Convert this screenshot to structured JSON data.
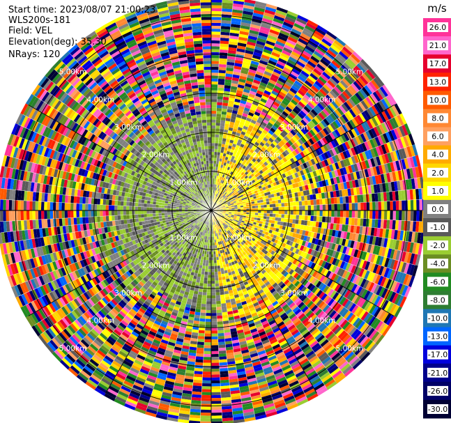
{
  "header": {
    "start_time": "Start time: 2023/08/07 21:00:23",
    "instrument": "WLS200s-181",
    "field": "Field: VEL",
    "elevation": "Elevation(deg): 35.30",
    "nrays": "NRays: 120"
  },
  "chart_data": {
    "type": "heatmap",
    "projection": "polar-ppi",
    "field": "VEL",
    "nrays": 120,
    "ring_labels": [
      "1.00km",
      "2.00km",
      "3.00km",
      "4.00km",
      "5.00km"
    ],
    "max_range_km": 5.4,
    "colorbar": {
      "unit": "m/s",
      "ticks": [
        "26.0",
        "21.0",
        "17.0",
        "13.0",
        "10.0",
        "8.0",
        "6.0",
        "4.0",
        "2.0",
        "1.0",
        "0.0",
        "-1.0",
        "-2.0",
        "-4.0",
        "-6.0",
        "-8.0",
        "-10.0",
        "-13.0",
        "-17.0",
        "-21.0",
        "-26.0",
        "-30.0"
      ],
      "colors": [
        "#ff3399",
        "#ff66cc",
        "#e6002e",
        "#ff2200",
        "#ff5a00",
        "#ff8833",
        "#ffa060",
        "#ffaa00",
        "#ffd700",
        "#ffff00",
        "#808080",
        "#5a5a5a",
        "#9acd32",
        "#6b8e23",
        "#228b22",
        "#2e7d32",
        "#1f77b4",
        "#0066ff",
        "#0000dd",
        "#00008b",
        "#000066",
        "#000033"
      ]
    }
  }
}
